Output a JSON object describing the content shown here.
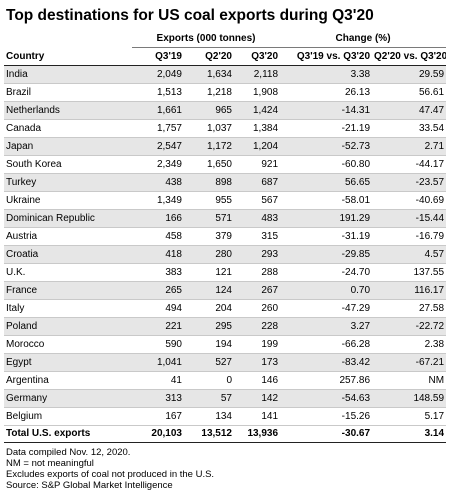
{
  "title": "Top destinations for US coal exports during Q3'20",
  "headers": {
    "exports_group": "Exports (000 tonnes)",
    "change_group": "Change (%)",
    "country": "Country",
    "columns": [
      "Q3'19",
      "Q2'20",
      "Q3'20",
      "Q3'19 vs. Q3'20",
      "Q2'20 vs. Q3'20"
    ]
  },
  "chart_data": {
    "type": "table",
    "columns": [
      "Country",
      "Q3'19",
      "Q2'20",
      "Q3'20",
      "Q3'19 vs. Q3'20",
      "Q2'20 vs. Q3'20"
    ],
    "rows": [
      [
        "India",
        "2,049",
        "1,634",
        "2,118",
        "3.38",
        "29.59"
      ],
      [
        "Brazil",
        "1,513",
        "1,218",
        "1,908",
        "26.13",
        "56.61"
      ],
      [
        "Netherlands",
        "1,661",
        "965",
        "1,424",
        "-14.31",
        "47.47"
      ],
      [
        "Canada",
        "1,757",
        "1,037",
        "1,384",
        "-21.19",
        "33.54"
      ],
      [
        "Japan",
        "2,547",
        "1,172",
        "1,204",
        "-52.73",
        "2.71"
      ],
      [
        "South Korea",
        "2,349",
        "1,650",
        "921",
        "-60.80",
        "-44.17"
      ],
      [
        "Turkey",
        "438",
        "898",
        "687",
        "56.65",
        "-23.57"
      ],
      [
        "Ukraine",
        "1,349",
        "955",
        "567",
        "-58.01",
        "-40.69"
      ],
      [
        "Dominican Republic",
        "166",
        "571",
        "483",
        "191.29",
        "-15.44"
      ],
      [
        "Austria",
        "458",
        "379",
        "315",
        "-31.19",
        "-16.79"
      ],
      [
        "Croatia",
        "418",
        "280",
        "293",
        "-29.85",
        "4.57"
      ],
      [
        "U.K.",
        "383",
        "121",
        "288",
        "-24.70",
        "137.55"
      ],
      [
        "France",
        "265",
        "124",
        "267",
        "0.70",
        "116.17"
      ],
      [
        "Italy",
        "494",
        "204",
        "260",
        "-47.29",
        "27.58"
      ],
      [
        "Poland",
        "221",
        "295",
        "228",
        "3.27",
        "-22.72"
      ],
      [
        "Morocco",
        "590",
        "194",
        "199",
        "-66.28",
        "2.38"
      ],
      [
        "Egypt",
        "1,041",
        "527",
        "173",
        "-83.42",
        "-67.21"
      ],
      [
        "Argentina",
        "41",
        "0",
        "146",
        "257.86",
        "NM"
      ],
      [
        "Germany",
        "313",
        "57",
        "142",
        "-54.63",
        "148.59"
      ],
      [
        "Belgium",
        "167",
        "134",
        "141",
        "-15.26",
        "5.17"
      ]
    ],
    "total": [
      "Total U.S. exports",
      "20,103",
      "13,512",
      "13,936",
      "-30.67",
      "3.14"
    ]
  },
  "notes": [
    "Data compiled Nov. 12, 2020.",
    "NM = not meaningful",
    "Excludes exports of coal not produced in the U.S.",
    "Source: S&P Global Market Intelligence"
  ]
}
